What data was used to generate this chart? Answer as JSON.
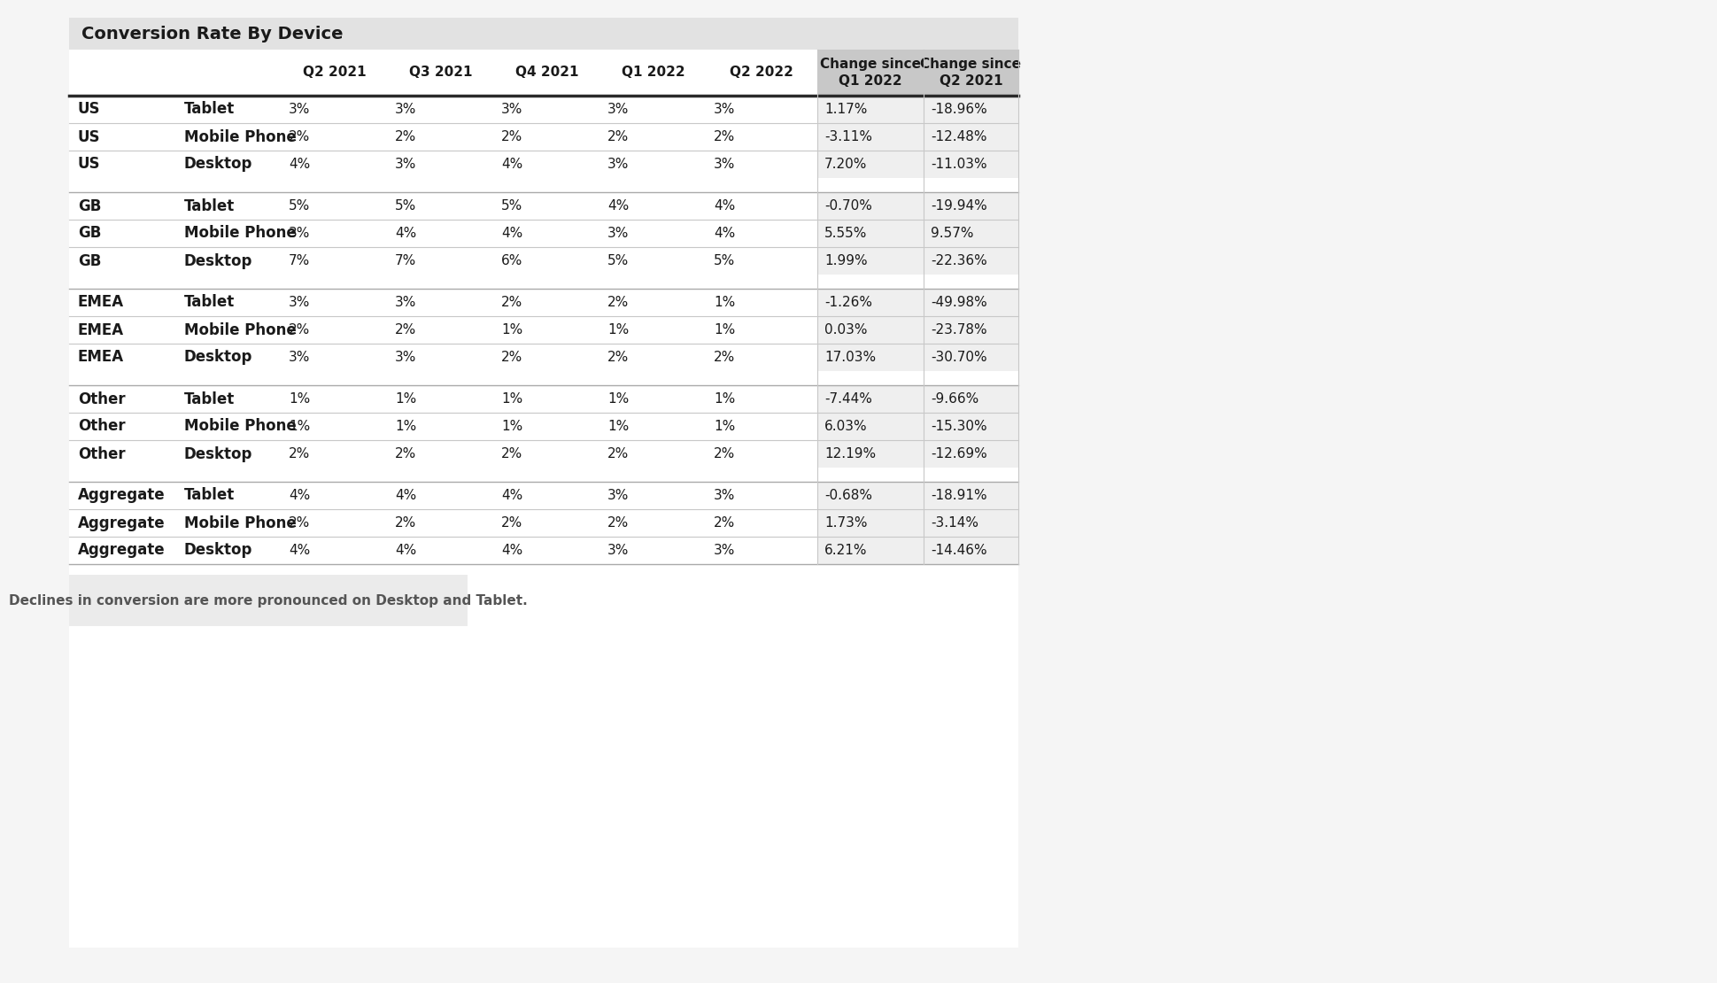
{
  "title": "Conversion Rate By Device",
  "col_headers": [
    "Q2 2021",
    "Q3 2021",
    "Q4 2021",
    "Q1 2022",
    "Q2 2022",
    "Change since\nQ1 2022",
    "Change since\nQ2 2021"
  ],
  "rows": [
    [
      "US",
      "Tablet",
      "3%",
      "3%",
      "3%",
      "3%",
      "3%",
      "1.17%",
      "-18.96%"
    ],
    [
      "US",
      "Mobile Phone",
      "2%",
      "2%",
      "2%",
      "2%",
      "2%",
      "-3.11%",
      "-12.48%"
    ],
    [
      "US",
      "Desktop",
      "4%",
      "3%",
      "4%",
      "3%",
      "3%",
      "7.20%",
      "-11.03%"
    ],
    [
      "",
      "",
      "",
      "",
      "",
      "",
      "",
      "",
      ""
    ],
    [
      "GB",
      "Tablet",
      "5%",
      "5%",
      "5%",
      "4%",
      "4%",
      "-0.70%",
      "-19.94%"
    ],
    [
      "GB",
      "Mobile Phone",
      "3%",
      "4%",
      "4%",
      "3%",
      "4%",
      "5.55%",
      "9.57%"
    ],
    [
      "GB",
      "Desktop",
      "7%",
      "7%",
      "6%",
      "5%",
      "5%",
      "1.99%",
      "-22.36%"
    ],
    [
      "",
      "",
      "",
      "",
      "",
      "",
      "",
      "",
      ""
    ],
    [
      "EMEA",
      "Tablet",
      "3%",
      "3%",
      "2%",
      "2%",
      "1%",
      "-1.26%",
      "-49.98%"
    ],
    [
      "EMEA",
      "Mobile Phone",
      "2%",
      "2%",
      "1%",
      "1%",
      "1%",
      "0.03%",
      "-23.78%"
    ],
    [
      "EMEA",
      "Desktop",
      "3%",
      "3%",
      "2%",
      "2%",
      "2%",
      "17.03%",
      "-30.70%"
    ],
    [
      "",
      "",
      "",
      "",
      "",
      "",
      "",
      "",
      ""
    ],
    [
      "Other",
      "Tablet",
      "1%",
      "1%",
      "1%",
      "1%",
      "1%",
      "-7.44%",
      "-9.66%"
    ],
    [
      "Other",
      "Mobile Phone",
      "1%",
      "1%",
      "1%",
      "1%",
      "1%",
      "6.03%",
      "-15.30%"
    ],
    [
      "Other",
      "Desktop",
      "2%",
      "2%",
      "2%",
      "2%",
      "2%",
      "12.19%",
      "-12.69%"
    ],
    [
      "",
      "",
      "",
      "",
      "",
      "",
      "",
      "",
      ""
    ],
    [
      "Aggregate",
      "Tablet",
      "4%",
      "4%",
      "4%",
      "3%",
      "3%",
      "-0.68%",
      "-18.91%"
    ],
    [
      "Aggregate",
      "Mobile Phone",
      "2%",
      "2%",
      "2%",
      "2%",
      "2%",
      "1.73%",
      "-3.14%"
    ],
    [
      "Aggregate",
      "Desktop",
      "4%",
      "4%",
      "4%",
      "3%",
      "3%",
      "6.21%",
      "-14.46%"
    ]
  ],
  "footnote": "Declines in conversion are more pronounced on Desktop and Tablet.",
  "bg_color": "#f5f5f5",
  "table_bg": "#ffffff",
  "title_bg": "#e2e2e2",
  "change_col_bg_header": "#c8c8c8",
  "change_col_bg_data": "#efefef",
  "sep_line_color": "#c8c8c8",
  "thick_line_color": "#2a2a2a",
  "text_color": "#1a1a1a",
  "footnote_bg": "#ebebeb",
  "footnote_text_color": "#555555"
}
